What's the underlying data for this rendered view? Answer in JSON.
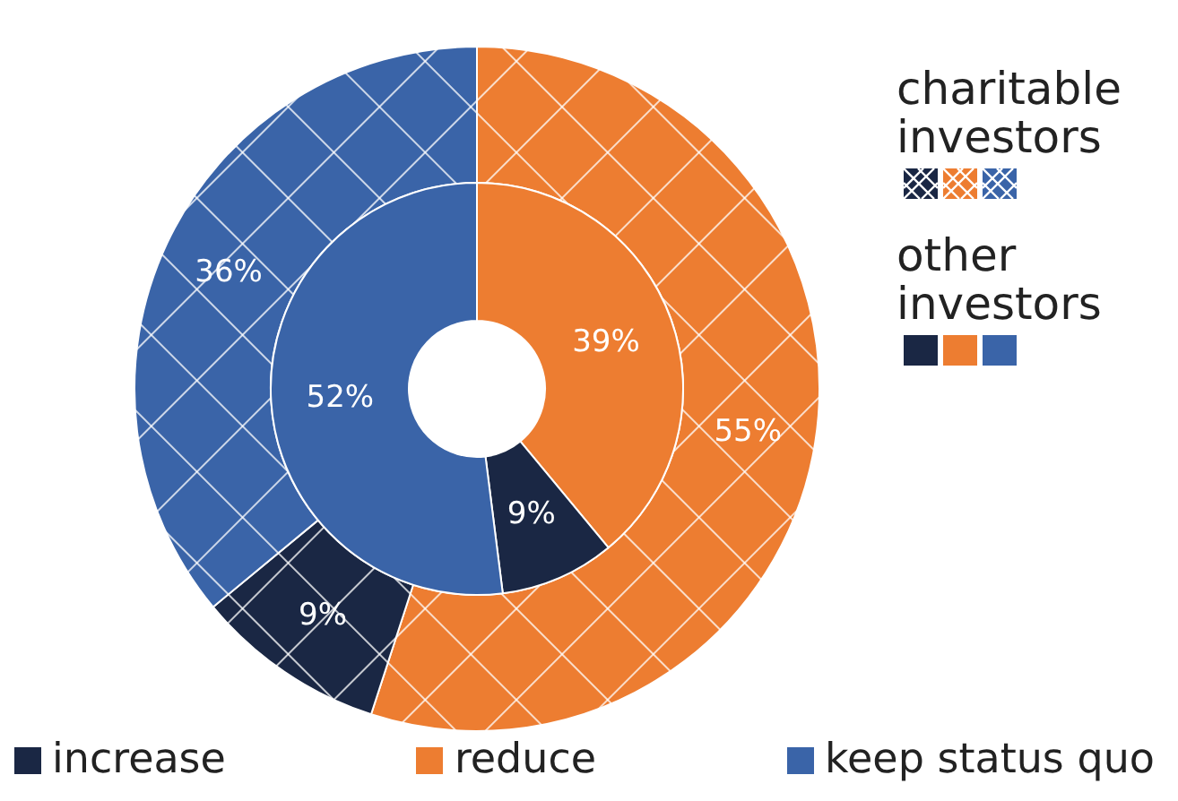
{
  "chart_data": {
    "type": "donut",
    "categories": [
      "reduce",
      "increase",
      "keep status quo"
    ],
    "colors": [
      "#ed7d31",
      "#1a2744",
      "#3a64a8"
    ],
    "series": [
      {
        "name": "charitable investors",
        "values": [
          55,
          9,
          36
        ],
        "value_labels": [
          "55%",
          "9%",
          "36%"
        ]
      },
      {
        "name": "other investors",
        "values": [
          39,
          9,
          52
        ],
        "value_labels": [
          "39%",
          "9%",
          "52%"
        ]
      }
    ],
    "legend": "bottom"
  }
}
